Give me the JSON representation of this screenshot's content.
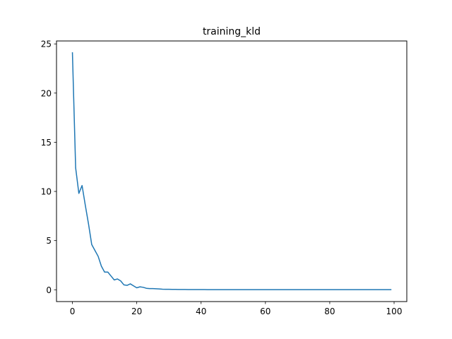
{
  "chart_data": {
    "type": "line",
    "title": "training_kld",
    "xlabel": "",
    "ylabel": "",
    "xlim": [
      -4.95,
      103.95
    ],
    "ylim": [
      -1.2,
      25.3
    ],
    "xticks": [
      0,
      20,
      40,
      60,
      80,
      100
    ],
    "yticks": [
      0,
      5,
      10,
      15,
      20,
      25
    ],
    "grid": false,
    "line_color": "#1f77b4",
    "series": [
      {
        "x": [
          0,
          1,
          2,
          3,
          4,
          5,
          6,
          7,
          8,
          9,
          10,
          11,
          12,
          13,
          14,
          15,
          16,
          17,
          18,
          19,
          20,
          21,
          22,
          23,
          24,
          25,
          26,
          27,
          28,
          29,
          30,
          31,
          32,
          33,
          34,
          35,
          36,
          37,
          38,
          39,
          40,
          41,
          42,
          43,
          44,
          45,
          46,
          47,
          48,
          49,
          50,
          51,
          52,
          53,
          54,
          55,
          56,
          57,
          58,
          59,
          60,
          61,
          62,
          63,
          64,
          65,
          66,
          67,
          68,
          69,
          70,
          71,
          72,
          73,
          74,
          75,
          76,
          77,
          78,
          79,
          80,
          81,
          82,
          83,
          84,
          85,
          86,
          87,
          88,
          89,
          90,
          91,
          92,
          93,
          94,
          95,
          96,
          97,
          98,
          99
        ],
        "values": [
          24.1,
          12.4,
          9.8,
          10.6,
          8.6,
          6.7,
          4.6,
          4.0,
          3.4,
          2.4,
          1.8,
          1.8,
          1.4,
          1.0,
          1.1,
          0.9,
          0.5,
          0.45,
          0.6,
          0.4,
          0.2,
          0.3,
          0.25,
          0.15,
          0.12,
          0.12,
          0.1,
          0.08,
          0.06,
          0.05,
          0.05,
          0.04,
          0.04,
          0.03,
          0.03,
          0.03,
          0.02,
          0.02,
          0.02,
          0.02,
          0.02,
          0.02,
          0.01,
          0.01,
          0.01,
          0.01,
          0.01,
          0.01,
          0.01,
          0.01,
          0.01,
          0.01,
          0.01,
          0.01,
          0.01,
          0.01,
          0.01,
          0.01,
          0.01,
          0.01,
          0.01,
          0.01,
          0.01,
          0.01,
          0.01,
          0.01,
          0.01,
          0.01,
          0.01,
          0.01,
          0.01,
          0.01,
          0.01,
          0.01,
          0.01,
          0.01,
          0.01,
          0.01,
          0.01,
          0.01,
          0.01,
          0.01,
          0.01,
          0.01,
          0.01,
          0.01,
          0.01,
          0.01,
          0.01,
          0.01,
          0.01,
          0.01,
          0.01,
          0.01,
          0.01,
          0.01,
          0.01,
          0.01,
          0.01,
          0.01
        ]
      }
    ]
  }
}
